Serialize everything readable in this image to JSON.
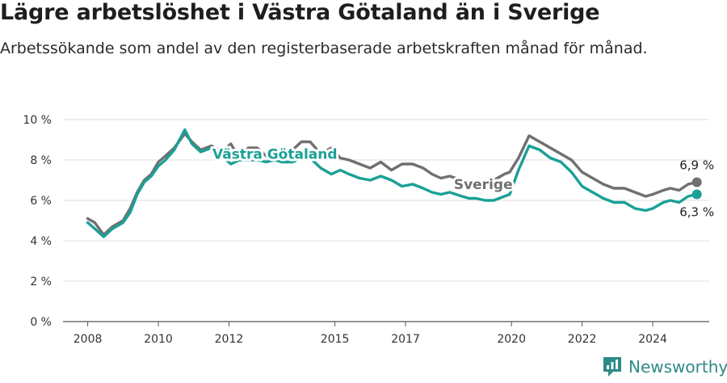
{
  "title": "Lägre arbetslöshet i Västra Götaland än i Sverige",
  "subtitle": "Arbetssökande som andel av den registerbaserade arbetskraften månad för månad.",
  "brand": {
    "name": "Newsworthy",
    "color": "#2d8a86"
  },
  "chart_data": {
    "type": "line",
    "title": "",
    "xlabel": "",
    "ylabel": "",
    "x_range": [
      2007.3,
      2025.6
    ],
    "ylim": [
      0,
      10
    ],
    "yticks": [
      "0 %",
      "2 %",
      "4 %",
      "6 %",
      "8 %",
      "10 %"
    ],
    "xticks": [
      {
        "label": "2008",
        "value": 2008
      },
      {
        "label": "2010",
        "value": 2010
      },
      {
        "label": "2012",
        "value": 2012
      },
      {
        "label": "2015",
        "value": 2015
      },
      {
        "label": "2017",
        "value": 2017
      },
      {
        "label": "2020",
        "value": 2020
      },
      {
        "label": "2022",
        "value": 2022
      },
      {
        "label": "2024",
        "value": 2024
      }
    ],
    "grid": true,
    "series": [
      {
        "name": "Sverige",
        "color": "#707070",
        "end_label": "6,9 %",
        "points": [
          [
            2008.0,
            5.1
          ],
          [
            2008.2,
            4.9
          ],
          [
            2008.45,
            4.3
          ],
          [
            2008.7,
            4.7
          ],
          [
            2009.0,
            5.0
          ],
          [
            2009.2,
            5.6
          ],
          [
            2009.4,
            6.4
          ],
          [
            2009.6,
            7.0
          ],
          [
            2009.8,
            7.3
          ],
          [
            2010.0,
            7.9
          ],
          [
            2010.2,
            8.2
          ],
          [
            2010.45,
            8.6
          ],
          [
            2010.75,
            9.3
          ],
          [
            2010.95,
            8.9
          ],
          [
            2011.2,
            8.5
          ],
          [
            2011.5,
            8.7
          ],
          [
            2011.8,
            8.4
          ],
          [
            2012.05,
            8.8
          ],
          [
            2012.3,
            8.1
          ],
          [
            2012.55,
            8.6
          ],
          [
            2012.8,
            8.6
          ],
          [
            2013.05,
            8.2
          ],
          [
            2013.3,
            8.6
          ],
          [
            2013.5,
            8.3
          ],
          [
            2013.8,
            8.5
          ],
          [
            2014.05,
            8.9
          ],
          [
            2014.3,
            8.9
          ],
          [
            2014.6,
            8.3
          ],
          [
            2014.9,
            8.6
          ],
          [
            2015.15,
            8.1
          ],
          [
            2015.4,
            8.0
          ],
          [
            2015.7,
            7.8
          ],
          [
            2016.0,
            7.6
          ],
          [
            2016.3,
            7.9
          ],
          [
            2016.6,
            7.5
          ],
          [
            2016.9,
            7.8
          ],
          [
            2017.2,
            7.8
          ],
          [
            2017.5,
            7.6
          ],
          [
            2017.75,
            7.3
          ],
          [
            2018.0,
            7.1
          ],
          [
            2018.25,
            7.2
          ],
          [
            2018.6,
            7.0
          ],
          [
            2018.8,
            6.9
          ],
          [
            2019.0,
            6.8
          ],
          [
            2019.25,
            6.9
          ],
          [
            2019.5,
            7.0
          ],
          [
            2019.8,
            7.3
          ],
          [
            2019.95,
            7.4
          ],
          [
            2020.2,
            8.1
          ],
          [
            2020.5,
            9.2
          ],
          [
            2020.8,
            8.9
          ],
          [
            2021.1,
            8.6
          ],
          [
            2021.4,
            8.3
          ],
          [
            2021.7,
            8.0
          ],
          [
            2022.0,
            7.4
          ],
          [
            2022.3,
            7.1
          ],
          [
            2022.6,
            6.8
          ],
          [
            2022.9,
            6.6
          ],
          [
            2023.2,
            6.6
          ],
          [
            2023.5,
            6.4
          ],
          [
            2023.8,
            6.2
          ],
          [
            2024.0,
            6.3
          ],
          [
            2024.3,
            6.5
          ],
          [
            2024.5,
            6.6
          ],
          [
            2024.75,
            6.5
          ],
          [
            2025.0,
            6.8
          ],
          [
            2025.25,
            6.9
          ]
        ]
      },
      {
        "name": "Västra Götaland",
        "color": "#1aa096",
        "end_label": "6,3 %",
        "points": [
          [
            2008.0,
            4.9
          ],
          [
            2008.2,
            4.6
          ],
          [
            2008.45,
            4.2
          ],
          [
            2008.7,
            4.6
          ],
          [
            2009.0,
            4.9
          ],
          [
            2009.2,
            5.4
          ],
          [
            2009.4,
            6.3
          ],
          [
            2009.6,
            6.9
          ],
          [
            2009.8,
            7.2
          ],
          [
            2010.0,
            7.7
          ],
          [
            2010.2,
            8.0
          ],
          [
            2010.45,
            8.5
          ],
          [
            2010.75,
            9.5
          ],
          [
            2010.95,
            8.8
          ],
          [
            2011.2,
            8.4
          ],
          [
            2011.5,
            8.6
          ],
          [
            2011.8,
            8.2
          ],
          [
            2012.05,
            7.8
          ],
          [
            2012.3,
            8.0
          ],
          [
            2012.55,
            8.0
          ],
          [
            2012.8,
            8.0
          ],
          [
            2013.05,
            7.9
          ],
          [
            2013.3,
            8.0
          ],
          [
            2013.5,
            7.9
          ],
          [
            2013.8,
            7.9
          ],
          [
            2014.05,
            8.1
          ],
          [
            2014.3,
            8.1
          ],
          [
            2014.6,
            7.6
          ],
          [
            2014.9,
            7.3
          ],
          [
            2015.15,
            7.5
          ],
          [
            2015.4,
            7.3
          ],
          [
            2015.7,
            7.1
          ],
          [
            2016.0,
            7.0
          ],
          [
            2016.3,
            7.2
          ],
          [
            2016.6,
            7.0
          ],
          [
            2016.9,
            6.7
          ],
          [
            2017.2,
            6.8
          ],
          [
            2017.5,
            6.6
          ],
          [
            2017.75,
            6.4
          ],
          [
            2018.0,
            6.3
          ],
          [
            2018.25,
            6.4
          ],
          [
            2018.6,
            6.2
          ],
          [
            2018.8,
            6.1
          ],
          [
            2019.0,
            6.1
          ],
          [
            2019.25,
            6.0
          ],
          [
            2019.5,
            6.0
          ],
          [
            2019.8,
            6.2
          ],
          [
            2019.95,
            6.3
          ],
          [
            2020.2,
            7.5
          ],
          [
            2020.5,
            8.7
          ],
          [
            2020.8,
            8.5
          ],
          [
            2021.1,
            8.1
          ],
          [
            2021.4,
            7.9
          ],
          [
            2021.7,
            7.4
          ],
          [
            2022.0,
            6.7
          ],
          [
            2022.3,
            6.4
          ],
          [
            2022.6,
            6.1
          ],
          [
            2022.9,
            5.9
          ],
          [
            2023.2,
            5.9
          ],
          [
            2023.5,
            5.6
          ],
          [
            2023.8,
            5.5
          ],
          [
            2024.0,
            5.6
          ],
          [
            2024.3,
            5.9
          ],
          [
            2024.5,
            6.0
          ],
          [
            2024.75,
            5.9
          ],
          [
            2025.0,
            6.2
          ],
          [
            2025.25,
            6.3
          ]
        ]
      }
    ],
    "annotations": [
      {
        "text": "Västra Götaland",
        "series": "Västra Götaland",
        "at": [
          2013.3,
          8.3
        ]
      },
      {
        "text": "Sverige",
        "series": "Sverige",
        "at": [
          2019.2,
          6.8
        ]
      }
    ]
  }
}
